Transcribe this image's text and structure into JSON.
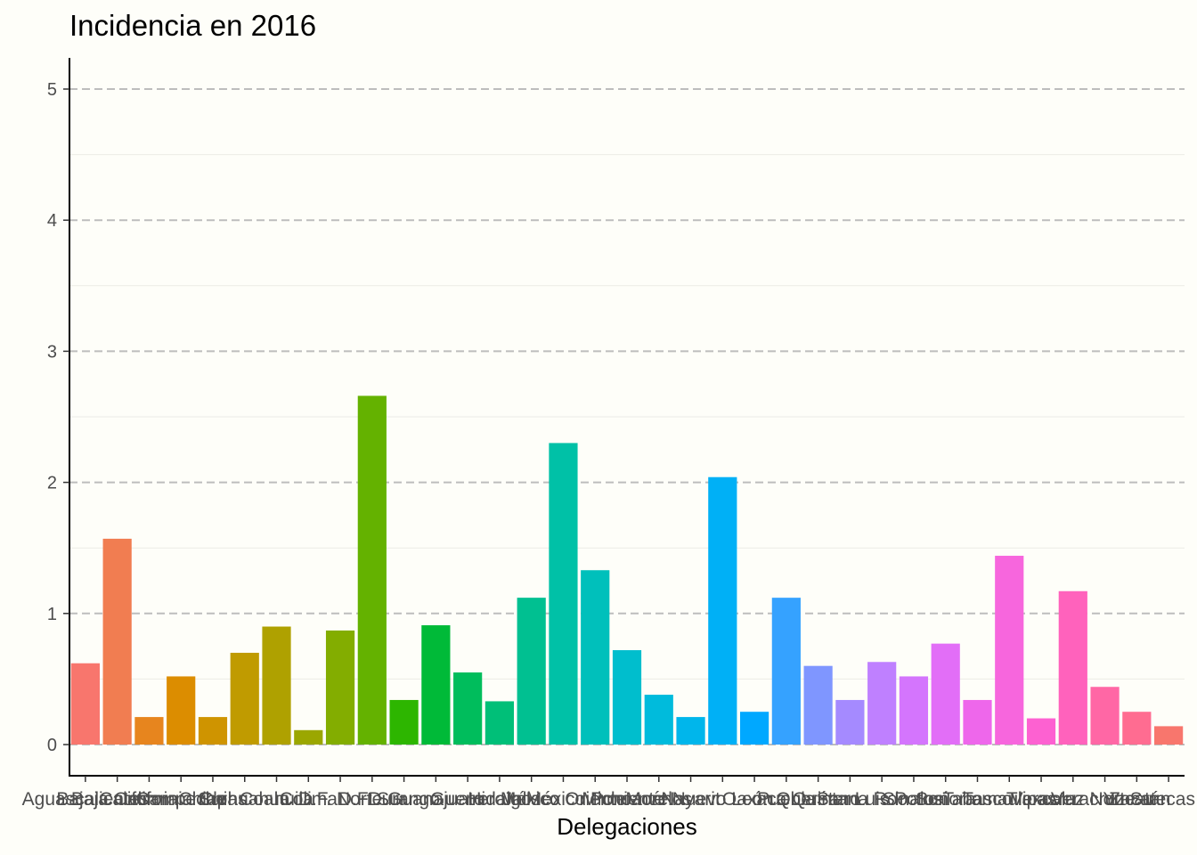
{
  "chart_data": {
    "type": "bar",
    "title": "Incidencia en 2016",
    "xlabel": "Delegaciones",
    "ylabel": "",
    "ylim": [
      -0.24,
      5.24
    ],
    "yticks": [
      0,
      1,
      2,
      3,
      4,
      5
    ],
    "grid": true,
    "legend": "none",
    "categories": [
      "Aguascalientes",
      "Baja California",
      "Baja California Sur",
      "Campeche",
      "Chiapas",
      "Chihuahua",
      "Coahuila",
      "Colima",
      "D.F. Norte",
      "D.F. Sur",
      "Durango",
      "Guanajuato",
      "Guerrero",
      "Hidalgo",
      "Jalisco",
      "México Oriente",
      "México Poniente",
      "Michoacán",
      "Morelos",
      "Nayarit",
      "Nuevo León",
      "Oaxaca",
      "Puebla",
      "Querétaro",
      "Quintana Roo",
      "San Luis Potosí",
      "Sinaloa",
      "Sonora",
      "Tabasco",
      "Tamaulipas",
      "Tlaxcala",
      "Veracruz Norte",
      "Veracruz Sur",
      "Yucatán",
      "Zacatecas"
    ],
    "values": [
      0.62,
      1.57,
      0.21,
      0.52,
      0.21,
      0.7,
      0.9,
      0.11,
      0.87,
      2.66,
      0.34,
      0.91,
      0.55,
      0.33,
      1.12,
      2.3,
      1.33,
      0.72,
      0.38,
      0.21,
      2.04,
      0.25,
      1.12,
      0.6,
      0.34,
      0.63,
      0.52,
      0.77,
      0.34,
      1.44,
      0.2,
      1.17,
      0.44,
      0.25,
      0.14
    ],
    "colors": [
      "#F8766D",
      "#F17D51",
      "#E7851E",
      "#DC8D00",
      "#CF9400",
      "#C09B00",
      "#AFA100",
      "#9BA700",
      "#83AD00",
      "#64B200",
      "#2DB600",
      "#00BA38",
      "#00BD5C",
      "#00BF78",
      "#00C091",
      "#00C1A7",
      "#00C0BB",
      "#00BECD",
      "#00BBDC",
      "#00B6EB",
      "#00B0F6",
      "#00A8FF",
      "#35A2FF",
      "#7F96FF",
      "#A58AFF",
      "#BF80FF",
      "#D475FD",
      "#E26EF7",
      "#EE67EB",
      "#F766DD",
      "#FD61D1",
      "#FF62BC",
      "#FF67A5",
      "#FF6C91",
      "#F8766D"
    ]
  }
}
